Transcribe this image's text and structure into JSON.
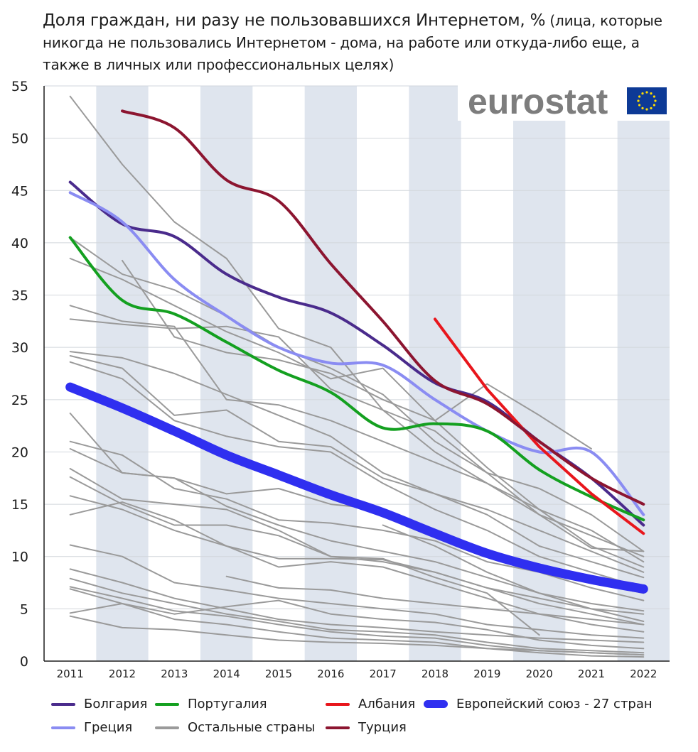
{
  "title": {
    "main": "Доля граждан, ни разу не пользовавшихся Интернетом, %",
    "sub": " (лица, которые никогда не пользовались Интернетом - дома, на работе или откуда-либо еще, а также в личных или профессиональных целях)"
  },
  "logo": {
    "text": "eurostat"
  },
  "chart_data": {
    "type": "line",
    "title": "Доля граждан, ни разу не пользовавшихся Интернетом, %",
    "xlabel": "",
    "ylabel": "",
    "x": [
      "2011",
      "2012",
      "2013",
      "2014",
      "2015",
      "2016",
      "2017",
      "2018",
      "2019",
      "2020",
      "2021",
      "2022"
    ],
    "ylim": [
      0,
      55
    ],
    "yticks": [
      0,
      5,
      10,
      15,
      20,
      25,
      30,
      35,
      40,
      45,
      50,
      55
    ],
    "series": [
      {
        "name": "Болгария",
        "color": "#4a2b8c",
        "width": 4,
        "values": [
          45.8,
          41.8,
          40.6,
          37.0,
          34.8,
          33.3,
          30.2,
          26.6,
          24.8,
          21.0,
          17.5,
          13.0
        ]
      },
      {
        "name": "Греция",
        "color": "#8a8cf2",
        "width": 4,
        "values": [
          44.8,
          42.0,
          36.5,
          33.0,
          30.0,
          28.5,
          28.3,
          25.0,
          22.0,
          20.0,
          20.0,
          14.0
        ]
      },
      {
        "name": "Португалия",
        "color": "#14a020",
        "width": 4,
        "values": [
          40.5,
          34.5,
          33.2,
          30.5,
          27.8,
          25.7,
          22.3,
          22.7,
          22.0,
          18.3,
          15.7,
          13.5
        ]
      },
      {
        "name": "Албания",
        "color": "#e8161c",
        "width": 4,
        "values": [
          null,
          null,
          null,
          null,
          null,
          null,
          null,
          32.7,
          26.0,
          20.5,
          16.0,
          12.2
        ]
      },
      {
        "name": "Турция",
        "color": "#8c1530",
        "width": 4,
        "values": [
          null,
          52.6,
          51.0,
          46.0,
          44.0,
          38.0,
          32.5,
          26.8,
          24.6,
          21.0,
          17.5,
          15.0
        ]
      },
      {
        "name": "Европейский союз - 27 стран",
        "color": "#2f2ff0",
        "width": 13,
        "values": [
          26.2,
          24.2,
          22.0,
          19.7,
          17.8,
          15.9,
          14.2,
          12.2,
          10.3,
          8.9,
          7.8,
          6.9
        ]
      }
    ],
    "others": {
      "name": "Остальные страны",
      "color": "#9a9a9a",
      "series": [
        [
          54.0,
          47.5,
          42.0,
          38.5,
          31.8,
          30.0,
          24.0,
          22.0,
          18.0,
          14.0,
          10.8,
          10.5
        ],
        [
          40.5,
          37.0,
          35.5,
          33.0,
          30.0,
          28.0,
          25.5,
          21.0,
          18.0,
          16.5,
          14.0,
          10.5
        ],
        [
          38.5,
          36.5,
          34.0,
          31.5,
          29.5,
          27.0,
          28.0,
          23.0,
          18.5,
          14.5,
          11.0,
          9.0
        ],
        [
          null,
          38.3,
          31.0,
          29.5,
          28.8,
          27.5,
          25.0,
          23.0,
          26.5,
          23.5,
          20.3,
          null
        ],
        [
          34.0,
          32.5,
          32.0,
          25.0,
          24.5,
          23.0,
          21.0,
          19.0,
          17.0,
          14.0,
          12.0,
          10.0
        ],
        [
          32.7,
          32.2,
          31.8,
          32.0,
          31.0,
          26.0,
          24.0,
          20.0,
          17.0,
          14.5,
          12.5,
          9.5
        ],
        [
          29.6,
          29.0,
          27.5,
          25.5,
          23.5,
          21.5,
          18.0,
          16.0,
          14.5,
          12.5,
          10.5,
          8.5
        ],
        [
          29.2,
          28.0,
          23.5,
          24.0,
          21.0,
          20.5,
          17.5,
          16.0,
          14.0,
          11.0,
          9.5,
          8.0
        ],
        [
          28.6,
          27.0,
          23.0,
          21.5,
          20.5,
          20.0,
          17.0,
          14.5,
          12.5,
          10.0,
          8.5,
          7.0
        ],
        [
          23.7,
          18.0,
          17.5,
          16.0,
          16.5,
          15.0,
          14.5,
          12.5,
          10.5,
          9.0,
          7.5,
          6.5
        ],
        [
          21.0,
          19.7,
          16.5,
          15.5,
          13.5,
          13.2,
          12.5,
          11.5,
          9.5,
          8.5,
          7.0,
          5.8
        ],
        [
          20.3,
          18.0,
          17.5,
          14.8,
          13.0,
          11.5,
          10.5,
          9.5,
          8.0,
          6.5,
          5.5,
          4.8
        ],
        [
          18.4,
          15.5,
          15.0,
          14.5,
          12.5,
          10.0,
          9.5,
          8.5,
          7.0,
          5.5,
          4.5,
          3.5
        ],
        [
          17.6,
          15.0,
          13.0,
          13.0,
          12.0,
          10.0,
          9.8,
          8.0,
          6.5,
          2.5,
          null,
          null
        ],
        [
          15.8,
          14.5,
          12.5,
          11.0,
          9.0,
          9.5,
          9.0,
          7.5,
          6.0,
          4.5,
          3.5,
          2.8
        ],
        [
          14.0,
          15.2,
          13.5,
          11.0,
          9.8,
          9.8,
          9.7,
          8.5,
          7.0,
          6.0,
          5.0,
          4.5
        ],
        [
          11.1,
          10.0,
          7.5,
          6.8,
          6.0,
          5.5,
          5.0,
          4.5,
          3.5,
          3.0,
          2.5,
          2.2
        ],
        [
          8.8,
          7.5,
          6.0,
          5.0,
          4.0,
          3.5,
          3.2,
          2.8,
          2.5,
          2.2,
          2.0,
          1.8
        ],
        [
          7.9,
          6.5,
          5.5,
          4.5,
          3.8,
          3.0,
          2.8,
          2.5,
          1.8,
          1.2,
          1.0,
          0.8
        ],
        [
          7.1,
          6.0,
          4.8,
          4.3,
          3.5,
          2.8,
          2.4,
          2.2,
          1.5,
          1.0,
          0.8,
          0.6
        ],
        [
          6.9,
          5.5,
          4.0,
          3.5,
          2.8,
          2.2,
          2.0,
          1.8,
          1.2,
          0.8,
          0.5,
          0.4
        ],
        [
          4.6,
          5.5,
          4.5,
          5.2,
          5.8,
          4.5,
          4.0,
          3.7,
          3.0,
          2.0,
          1.5,
          1.2
        ],
        [
          4.3,
          3.2,
          3.0,
          2.5,
          2.0,
          1.8,
          1.7,
          1.5,
          1.2,
          1.0,
          0.8,
          0.6
        ],
        [
          null,
          null,
          null,
          8.1,
          7.0,
          6.8,
          6.0,
          5.5,
          5.0,
          4.5,
          4.0,
          3.5
        ],
        [
          null,
          null,
          null,
          null,
          null,
          null,
          13.0,
          11.0,
          8.5,
          6.5,
          5.0,
          3.8
        ]
      ]
    },
    "legend": [
      {
        "name": "Болгария",
        "color": "#4a2b8c",
        "thick": false
      },
      {
        "name": "Португалия",
        "color": "#14a020",
        "thick": false
      },
      {
        "name": "Албания",
        "color": "#e8161c",
        "thick": false
      },
      {
        "name": "Европейский союз - 27 стран",
        "color": "#2f2ff0",
        "thick": true
      },
      {
        "name": "Греция",
        "color": "#8a8cf2",
        "thick": false
      },
      {
        "name": "Остальные страны",
        "color": "#9a9a9a",
        "thick": false
      },
      {
        "name": "Турция",
        "color": "#8c1530",
        "thick": false
      }
    ]
  }
}
